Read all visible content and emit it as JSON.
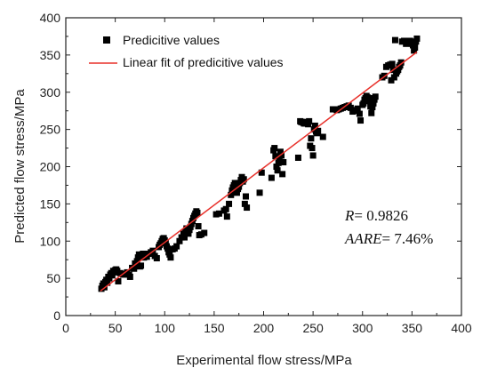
{
  "chart_data": {
    "type": "scatter",
    "xlabel": "Experimental flow stress/MPa",
    "ylabel": "Predicted flow stress/MPa",
    "xlim": [
      0,
      400
    ],
    "ylim": [
      0,
      400
    ],
    "xticks": [
      "0",
      "50",
      "100",
      "150",
      "200",
      "250",
      "300",
      "350",
      "400"
    ],
    "yticks": [
      "0",
      "50",
      "100",
      "150",
      "200",
      "250",
      "300",
      "350",
      "400"
    ],
    "grid": false,
    "legend_position": "top-left",
    "series": [
      {
        "name": "Predicitive values",
        "marker": "square",
        "color": "#000000",
        "points": [
          [
            36,
            36
          ],
          [
            37,
            40
          ],
          [
            38,
            43
          ],
          [
            39,
            38
          ],
          [
            40,
            45
          ],
          [
            41,
            48
          ],
          [
            42,
            44
          ],
          [
            43,
            52
          ],
          [
            44,
            50
          ],
          [
            45,
            55
          ],
          [
            46,
            57
          ],
          [
            47,
            54
          ],
          [
            48,
            60
          ],
          [
            49,
            58
          ],
          [
            50,
            61
          ],
          [
            51,
            62
          ],
          [
            52,
            60
          ],
          [
            53,
            46
          ],
          [
            55,
            57
          ],
          [
            58,
            55
          ],
          [
            60,
            56
          ],
          [
            62,
            58
          ],
          [
            64,
            55
          ],
          [
            65,
            52
          ],
          [
            67,
            64
          ],
          [
            69,
            63
          ],
          [
            70,
            70
          ],
          [
            72,
            73
          ],
          [
            73,
            78
          ],
          [
            74,
            82
          ],
          [
            75,
            66
          ],
          [
            76,
            67
          ],
          [
            78,
            83
          ],
          [
            79,
            78
          ],
          [
            80,
            80
          ],
          [
            82,
            79
          ],
          [
            84,
            83
          ],
          [
            86,
            85
          ],
          [
            88,
            87
          ],
          [
            90,
            80
          ],
          [
            92,
            77
          ],
          [
            94,
            92
          ],
          [
            95,
            95
          ],
          [
            96,
            97
          ],
          [
            97,
            100
          ],
          [
            98,
            103
          ],
          [
            99,
            104
          ],
          [
            100,
            101
          ],
          [
            101,
            98
          ],
          [
            102,
            93
          ],
          [
            103,
            90
          ],
          [
            104,
            85
          ],
          [
            105,
            82
          ],
          [
            106,
            78
          ],
          [
            108,
            89
          ],
          [
            110,
            90
          ],
          [
            112,
            93
          ],
          [
            115,
            100
          ],
          [
            117,
            105
          ],
          [
            119,
            110
          ],
          [
            120,
            105
          ],
          [
            121,
            112
          ],
          [
            122,
            117
          ],
          [
            124,
            110
          ],
          [
            125,
            115
          ],
          [
            126,
            119
          ],
          [
            127,
            123
          ],
          [
            128,
            127
          ],
          [
            129,
            131
          ],
          [
            130,
            134
          ],
          [
            131,
            137
          ],
          [
            132,
            140
          ],
          [
            133,
            138
          ],
          [
            134,
            120
          ],
          [
            135,
            108
          ],
          [
            137,
            109
          ],
          [
            140,
            111
          ],
          [
            152,
            136
          ],
          [
            155,
            137
          ],
          [
            160,
            141
          ],
          [
            162,
            143
          ],
          [
            163,
            133
          ],
          [
            165,
            150
          ],
          [
            167,
            162
          ],
          [
            168,
            168
          ],
          [
            169,
            172
          ],
          [
            170,
            175
          ],
          [
            171,
            178
          ],
          [
            172,
            171
          ],
          [
            173,
            165
          ],
          [
            174,
            170
          ],
          [
            175,
            173
          ],
          [
            176,
            178
          ],
          [
            177,
            182
          ],
          [
            178,
            186
          ],
          [
            179,
            180
          ],
          [
            180,
            183
          ],
          [
            181,
            150
          ],
          [
            182,
            160
          ],
          [
            183,
            145
          ],
          [
            196,
            165
          ],
          [
            198,
            192
          ],
          [
            208,
            185
          ],
          [
            210,
            222
          ],
          [
            211,
            225
          ],
          [
            212,
            214
          ],
          [
            213,
            200
          ],
          [
            214,
            195
          ],
          [
            215,
            205
          ],
          [
            216,
            210
          ],
          [
            217,
            220
          ],
          [
            218,
            215
          ],
          [
            219,
            190
          ],
          [
            220,
            206
          ],
          [
            235,
            212
          ],
          [
            237,
            261
          ],
          [
            238,
            260
          ],
          [
            239,
            260
          ],
          [
            240,
            259
          ],
          [
            241,
            258
          ],
          [
            242,
            258
          ],
          [
            243,
            260
          ],
          [
            244,
            259
          ],
          [
            245,
            257
          ],
          [
            246,
            261
          ],
          [
            247,
            228
          ],
          [
            248,
            238
          ],
          [
            249,
            225
          ],
          [
            250,
            215
          ],
          [
            251,
            250
          ],
          [
            252,
            255
          ],
          [
            253,
            247
          ],
          [
            254,
            245
          ],
          [
            255,
            248
          ],
          [
            260,
            240
          ],
          [
            270,
            277
          ],
          [
            272,
            277
          ],
          [
            274,
            276
          ],
          [
            276,
            277
          ],
          [
            278,
            278
          ],
          [
            280,
            279
          ],
          [
            282,
            280
          ],
          [
            284,
            281
          ],
          [
            286,
            282
          ],
          [
            288,
            279
          ],
          [
            290,
            274
          ],
          [
            291,
            275
          ],
          [
            293,
            276
          ],
          [
            295,
            278
          ],
          [
            297,
            271
          ],
          [
            298,
            262
          ],
          [
            300,
            283
          ],
          [
            301,
            285
          ],
          [
            302,
            290
          ],
          [
            303,
            292
          ],
          [
            304,
            295
          ],
          [
            305,
            293
          ],
          [
            306,
            288
          ],
          [
            307,
            292
          ],
          [
            308,
            281
          ],
          [
            309,
            272
          ],
          [
            310,
            280
          ],
          [
            311,
            285
          ],
          [
            312,
            290
          ],
          [
            313,
            294
          ],
          [
            320,
            320
          ],
          [
            322,
            322
          ],
          [
            324,
            334
          ],
          [
            326,
            336
          ],
          [
            328,
            337
          ],
          [
            329,
            316
          ],
          [
            330,
            338
          ],
          [
            331,
            330
          ],
          [
            332,
            320
          ],
          [
            333,
            370
          ],
          [
            334,
            325
          ],
          [
            335,
            328
          ],
          [
            336,
            330
          ],
          [
            337,
            334
          ],
          [
            338,
            336
          ],
          [
            339,
            340
          ],
          [
            340,
            368
          ],
          [
            342,
            369
          ],
          [
            344,
            365
          ],
          [
            346,
            366
          ],
          [
            348,
            369
          ],
          [
            349,
            367
          ],
          [
            350,
            365
          ],
          [
            351,
            363
          ],
          [
            352,
            356
          ],
          [
            353,
            360
          ],
          [
            354,
            368
          ],
          [
            355,
            372
          ]
        ]
      },
      {
        "name": "Linear fit of predicitive values",
        "type": "line",
        "color": "#e8302a",
        "points": [
          [
            35,
            33
          ],
          [
            355,
            354
          ]
        ]
      }
    ],
    "annotations": {
      "r_label": "R",
      "r_value": "= 0.9826",
      "aare_label": "AARE",
      "aare_value": "= 7.46%"
    }
  }
}
